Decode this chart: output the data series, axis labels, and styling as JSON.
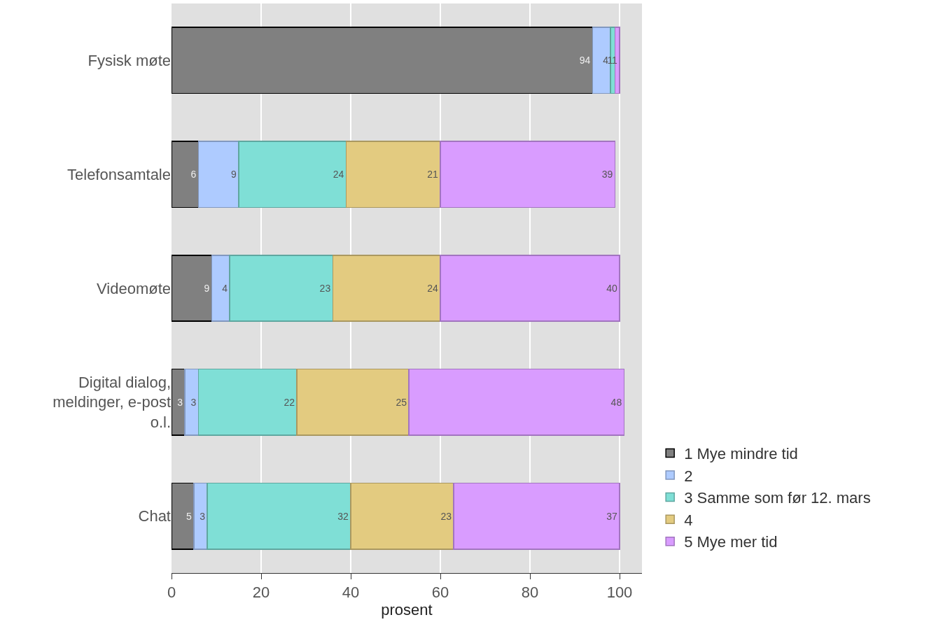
{
  "chart_data": {
    "type": "bar",
    "orientation": "horizontal",
    "stacked": true,
    "xlabel": "prosent",
    "categories": [
      "Fysisk møte",
      "Telefonsamtale",
      "Videomøte",
      "Digital dialog, meldinger, e-post o.l.",
      "Chat"
    ],
    "series": [
      {
        "name": "1 Mye mindre tid",
        "color": "#808080",
        "values": [
          94,
          6,
          9,
          3,
          5
        ],
        "value_labels": [
          "94",
          "6",
          "9",
          "3",
          "5"
        ]
      },
      {
        "name": "2",
        "color": "#aecbff",
        "values": [
          4,
          9,
          4,
          3,
          3
        ],
        "value_labels": [
          "4",
          "9",
          "4",
          "3",
          "3"
        ]
      },
      {
        "name": "3 Samme som før 12. mars",
        "color": "#7fdfd6",
        "values": [
          1,
          24,
          23,
          22,
          32
        ],
        "value_labels": [
          "1",
          "24",
          "23",
          "22",
          "32"
        ]
      },
      {
        "name": "4",
        "color": "#e3cb80",
        "values": [
          0,
          21,
          24,
          25,
          23
        ],
        "value_labels": [
          null,
          "21",
          "24",
          "25",
          "23"
        ]
      },
      {
        "name": "5 Mye mer tid",
        "color": "#d99cff",
        "values": [
          1,
          39,
          40,
          48,
          37
        ],
        "value_labels": [
          "1",
          "39",
          "40",
          "48",
          "37"
        ]
      }
    ],
    "xlim": [
      0,
      105
    ],
    "xticks": [
      0,
      20,
      40,
      60,
      80,
      100
    ],
    "grid": "x",
    "legend": "bottom right"
  }
}
